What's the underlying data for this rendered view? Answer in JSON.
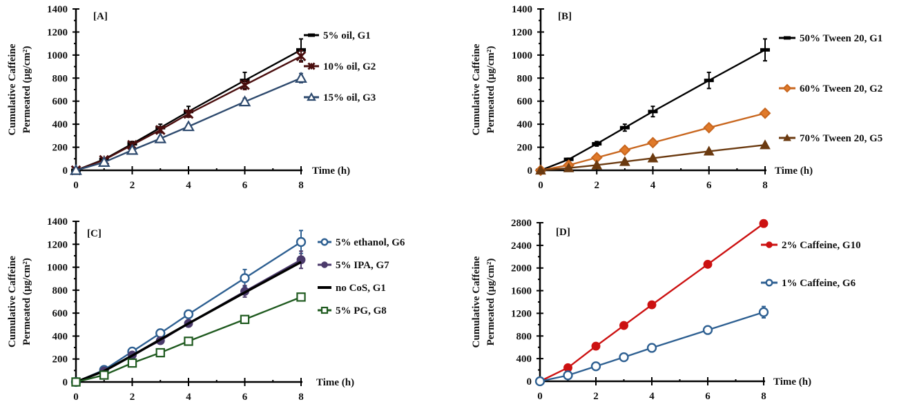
{
  "chart_data": [
    {
      "type": "line",
      "panel_label": "[A]",
      "title": "",
      "xlabel": "Time (h)",
      "ylabel": [
        "Cumulative Caffeine",
        "Permeated (µg/cm²)"
      ],
      "xlim": [
        0,
        8
      ],
      "ylim": [
        0,
        1400
      ],
      "xticks": [
        0,
        2,
        4,
        6,
        8
      ],
      "yticks": [
        0,
        200,
        400,
        600,
        800,
        1000,
        1200,
        1400
      ],
      "grid": false,
      "legend_position": "right",
      "x": [
        0,
        1,
        2,
        3,
        4,
        6,
        8
      ],
      "series": [
        {
          "name": "5% oil, G1",
          "color": "#000000",
          "marker": "dash",
          "values": [
            0,
            95,
            230,
            370,
            510,
            780,
            1045
          ],
          "errors": [
            0,
            10,
            20,
            30,
            45,
            70,
            95
          ]
        },
        {
          "name": "10% oil, G2",
          "color": "#4a0e0e",
          "marker": "star",
          "values": [
            0,
            90,
            220,
            350,
            490,
            740,
            990
          ],
          "errors": [
            0,
            8,
            15,
            25,
            30,
            40,
            50
          ]
        },
        {
          "name": "15% oil, G3",
          "color": "#2e4a6e",
          "marker": "triangle-open",
          "values": [
            0,
            70,
            175,
            275,
            380,
            595,
            800
          ],
          "errors": [
            0,
            8,
            12,
            18,
            22,
            30,
            40
          ]
        }
      ]
    },
    {
      "type": "line",
      "panel_label": "[B]",
      "title": "",
      "xlabel": "Time (h)",
      "ylabel": [
        "Cumulative Caffeine",
        "Permeated (µg/cm²)"
      ],
      "xlim": [
        0,
        8
      ],
      "ylim": [
        0,
        1400
      ],
      "xticks": [
        0,
        2,
        4,
        6,
        8
      ],
      "yticks": [
        0,
        200,
        400,
        600,
        800,
        1000,
        1200,
        1400
      ],
      "grid": false,
      "legend_position": "right",
      "x": [
        0,
        1,
        2,
        3,
        4,
        6,
        8
      ],
      "series": [
        {
          "name": "50% Tween 20, G1",
          "color": "#000000",
          "marker": "dash",
          "values": [
            0,
            95,
            230,
            370,
            510,
            780,
            1045
          ],
          "errors": [
            0,
            10,
            20,
            30,
            45,
            70,
            95
          ]
        },
        {
          "name": "60% Tween 20, G2",
          "color": "#c8661e",
          "marker": "diamond",
          "values": [
            0,
            45,
            110,
            175,
            240,
            370,
            495
          ],
          "errors": [
            0,
            5,
            8,
            10,
            12,
            15,
            18
          ]
        },
        {
          "name": "70% Tween 20, G5",
          "color": "#6b3a10",
          "marker": "triangle",
          "values": [
            0,
            20,
            45,
            75,
            105,
            165,
            220
          ],
          "errors": [
            0,
            3,
            5,
            6,
            8,
            10,
            12
          ]
        }
      ]
    },
    {
      "type": "line",
      "panel_label": "[C]",
      "title": "",
      "xlabel": "Time (h)",
      "ylabel": [
        "Cumulative Caffeine",
        "Permeated (µg/cm²)"
      ],
      "xlim": [
        0,
        8
      ],
      "ylim": [
        0,
        1400
      ],
      "xticks": [
        0,
        2,
        4,
        6,
        8
      ],
      "yticks": [
        0,
        200,
        400,
        600,
        800,
        1000,
        1200,
        1400
      ],
      "grid": false,
      "legend_position": "right",
      "x": [
        0,
        1,
        2,
        3,
        4,
        6,
        8
      ],
      "series": [
        {
          "name": "5% ethanol, G6",
          "color": "#2d5f91",
          "marker": "circle-open",
          "values": [
            0,
            105,
            265,
            425,
            590,
            905,
            1220
          ],
          "errors": [
            0,
            10,
            15,
            25,
            35,
            75,
            100
          ]
        },
        {
          "name": "5% IPA, G7",
          "color": "#4b3a6b",
          "marker": "circle",
          "values": [
            0,
            95,
            235,
            360,
            510,
            790,
            1065
          ],
          "errors": [
            0,
            8,
            15,
            20,
            30,
            50,
            75
          ]
        },
        {
          "name": "no CoS, G1",
          "color": "#000000",
          "marker": "none",
          "values": [
            0,
            95,
            230,
            370,
            510,
            780,
            1045
          ],
          "errors": [
            0,
            0,
            0,
            0,
            0,
            0,
            0
          ]
        },
        {
          "name": "5% PG, G8",
          "color": "#1f5a1f",
          "marker": "square-open",
          "values": [
            0,
            60,
            165,
            255,
            355,
            545,
            740
          ],
          "errors": [
            0,
            5,
            8,
            10,
            12,
            15,
            18
          ]
        }
      ]
    },
    {
      "type": "line",
      "panel_label": "[D]",
      "title": "",
      "xlabel": "Time (h)",
      "ylabel": [
        "Cumulative Caffeine",
        "Permeated (µg/cm²)"
      ],
      "xlim": [
        0,
        8
      ],
      "ylim": [
        0,
        2800
      ],
      "xticks": [
        0,
        2,
        4,
        6,
        8
      ],
      "yticks": [
        0,
        400,
        800,
        1200,
        1600,
        2000,
        2400,
        2800
      ],
      "grid": false,
      "legend_position": "right",
      "x": [
        0,
        1,
        2,
        3,
        4,
        6,
        8
      ],
      "series": [
        {
          "name": "2% Caffeine, G10",
          "color": "#cc1111",
          "marker": "circle",
          "values": [
            0,
            240,
            620,
            985,
            1350,
            2065,
            2785
          ],
          "errors": [
            0,
            20,
            30,
            40,
            40,
            50,
            60
          ]
        },
        {
          "name": "1% Caffeine, G6",
          "color": "#2d5f91",
          "marker": "circle-open",
          "values": [
            0,
            105,
            265,
            425,
            590,
            905,
            1220
          ],
          "errors": [
            0,
            10,
            15,
            25,
            35,
            50,
            100
          ]
        }
      ]
    }
  ]
}
